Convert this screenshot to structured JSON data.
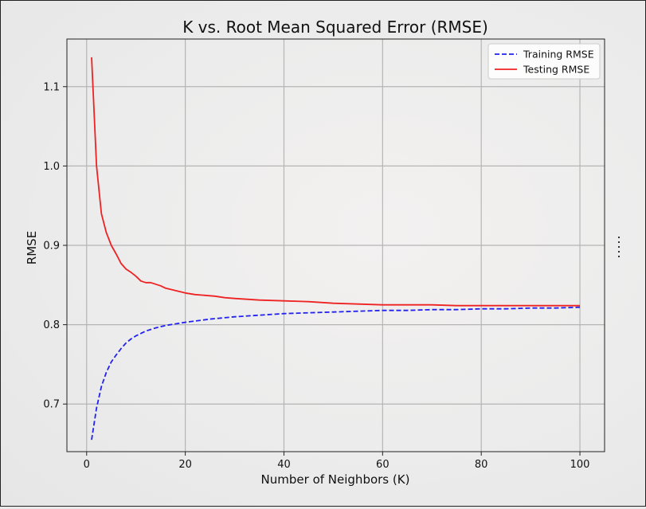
{
  "chart_data": {
    "type": "line",
    "title": "K vs. Root Mean Squared Error (RMSE)",
    "xlabel": "Number of Neighbors (K)",
    "ylabel": "RMSE",
    "xlim": [
      -4,
      105
    ],
    "ylim": [
      0.64,
      1.16
    ],
    "xticks": [
      0,
      20,
      40,
      60,
      80,
      100
    ],
    "xtick_labels": [
      "0",
      "20",
      "40",
      "60",
      "80",
      "100"
    ],
    "yticks": [
      0.7,
      0.8,
      0.9,
      1.0,
      1.1
    ],
    "ytick_labels": [
      "0.7",
      "0.8",
      "0.9",
      "1.0",
      "1.1"
    ],
    "grid": true,
    "legend_position": "top-right",
    "series": [
      {
        "name": "Training RMSE",
        "color": "#2222ee",
        "style": "dashed",
        "x": [
          1,
          2,
          3,
          4,
          5,
          6,
          7,
          8,
          9,
          10,
          12,
          14,
          16,
          18,
          20,
          25,
          30,
          35,
          40,
          45,
          50,
          55,
          60,
          65,
          70,
          75,
          80,
          85,
          90,
          95,
          100
        ],
        "y": [
          0.655,
          0.695,
          0.722,
          0.74,
          0.753,
          0.762,
          0.77,
          0.777,
          0.782,
          0.786,
          0.792,
          0.796,
          0.799,
          0.801,
          0.803,
          0.807,
          0.81,
          0.812,
          0.814,
          0.815,
          0.816,
          0.817,
          0.818,
          0.818,
          0.819,
          0.819,
          0.82,
          0.82,
          0.821,
          0.821,
          0.822
        ]
      },
      {
        "name": "Testing RMSE",
        "color": "#ee2222",
        "style": "solid",
        "x": [
          1,
          2,
          3,
          4,
          5,
          6,
          7,
          8,
          9,
          10,
          11,
          12,
          13,
          14,
          15,
          16,
          18,
          20,
          22,
          24,
          26,
          28,
          30,
          35,
          40,
          45,
          50,
          55,
          60,
          65,
          70,
          75,
          80,
          85,
          90,
          95,
          100
        ],
        "y": [
          1.137,
          1.0,
          0.94,
          0.916,
          0.9,
          0.889,
          0.877,
          0.87,
          0.866,
          0.861,
          0.855,
          0.853,
          0.853,
          0.851,
          0.849,
          0.846,
          0.843,
          0.84,
          0.838,
          0.837,
          0.836,
          0.834,
          0.833,
          0.831,
          0.83,
          0.829,
          0.827,
          0.826,
          0.825,
          0.825,
          0.825,
          0.824,
          0.824,
          0.824,
          0.824,
          0.824,
          0.824
        ]
      }
    ]
  }
}
